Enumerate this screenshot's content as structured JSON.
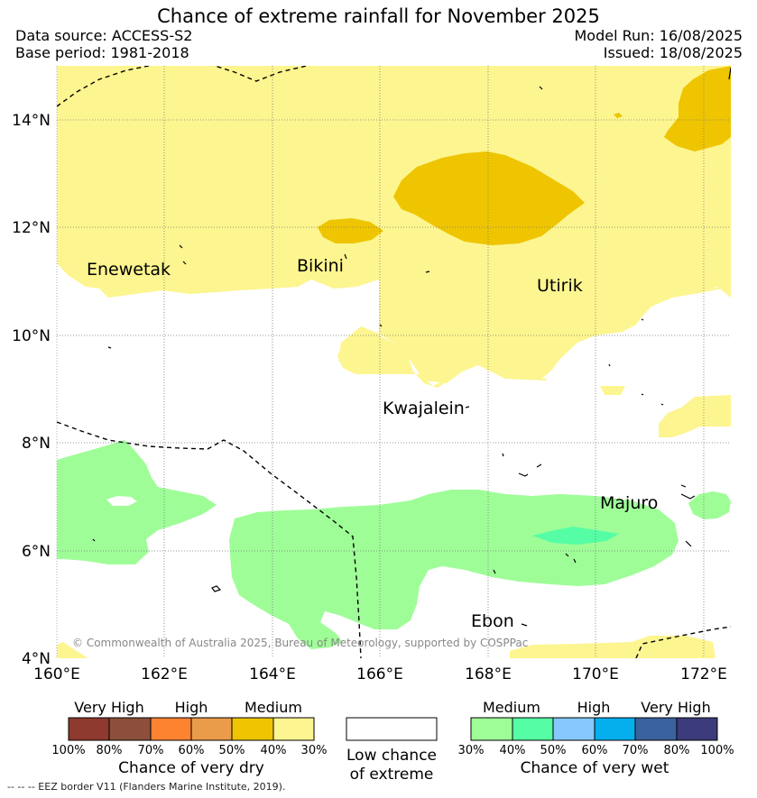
{
  "header": {
    "title": "Chance of extreme rainfall for November 2025",
    "data_source": "Data source: ACCESS-S2",
    "base_period": "Base period: 1981-2018",
    "model_run": "Model Run: 16/08/2025",
    "issued": "Issued: 18/08/2025"
  },
  "map": {
    "lat_labels": [
      "14°N",
      "12°N",
      "10°N",
      "8°N",
      "6°N",
      "4°N"
    ],
    "lon_labels": [
      "160°E",
      "162°E",
      "164°E",
      "166°E",
      "168°E",
      "170°E",
      "172°E"
    ],
    "places": {
      "enewetak": "Enewetak",
      "bikini": "Bikini",
      "utirik": "Utirik",
      "kwajalein": "Kwajalein",
      "majuro": "Majuro",
      "ebon": "Ebon"
    },
    "copyright": "© Commonwealth of Australia 2025, Bureau of Meteorology, supported by COSPPac",
    "colors": {
      "dry_medium_light": "#fdf58f",
      "dry_medium_dark": "#eec500",
      "wet_medium_light": "#9ffd98",
      "wet_medium_dark": "#55fea4"
    }
  },
  "legend": {
    "dry": {
      "headers": [
        "Very High",
        "High",
        "Medium"
      ],
      "ticks": [
        "100%",
        "80%",
        "70%",
        "60%",
        "50%",
        "40%",
        "30%"
      ],
      "colors": [
        "#8e3a2f",
        "#8b4f3b",
        "#fd8331",
        "#eb9c4a",
        "#eec500",
        "#fdf58f"
      ],
      "title": "Chance of very dry"
    },
    "neutral": {
      "line1": "Low chance",
      "line2": "of extreme"
    },
    "wet": {
      "headers": [
        "Medium",
        "High",
        "Very High"
      ],
      "ticks": [
        "30%",
        "40%",
        "50%",
        "60%",
        "70%",
        "80%",
        "100%"
      ],
      "colors": [
        "#9ffd98",
        "#55fea4",
        "#86c8fc",
        "#05aeed",
        "#3a629e",
        "#3c3b7b"
      ],
      "title": "Chance of very wet"
    }
  },
  "footnote": "--  --  -- EEZ border V11 (Flanders Marine Institute, 2019)."
}
